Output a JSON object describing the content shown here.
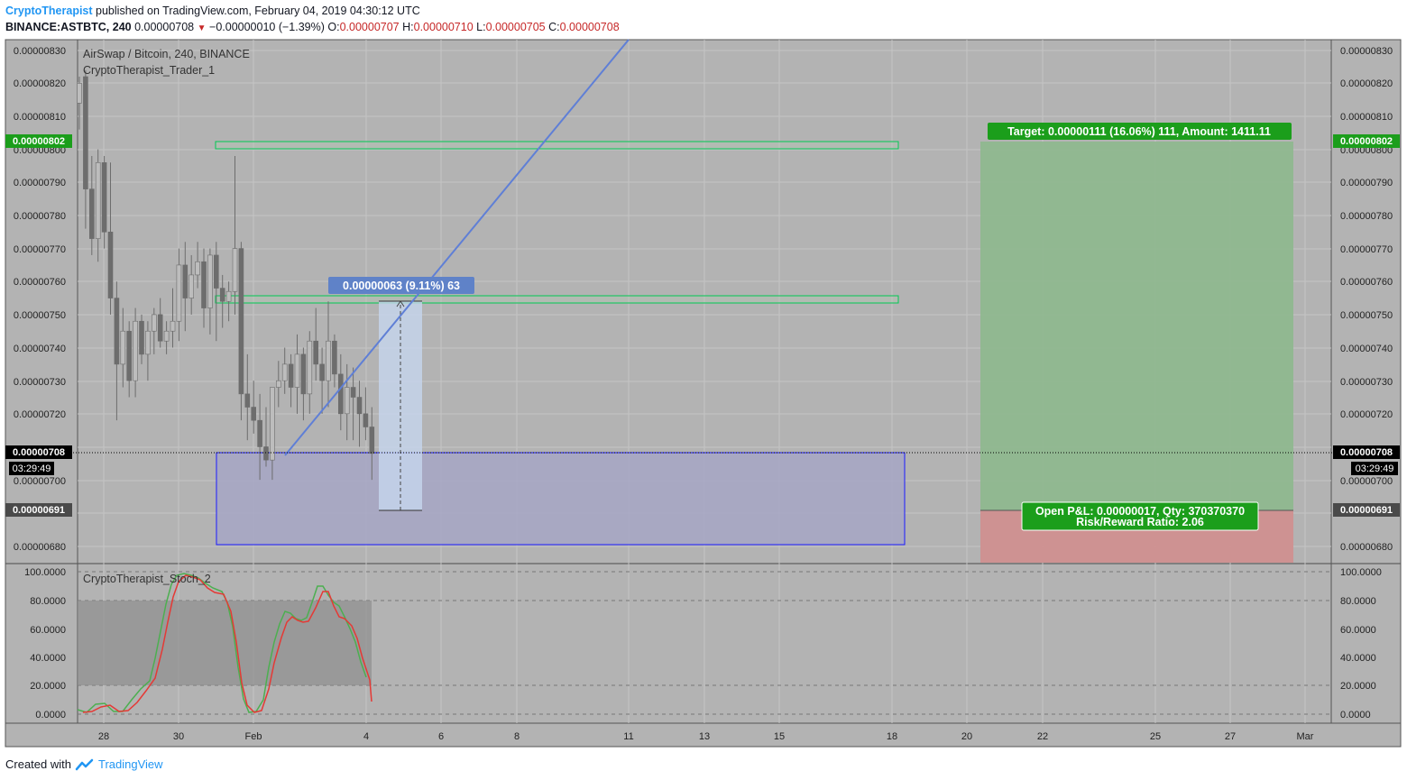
{
  "header": {
    "author": "CryptoTherapist",
    "published": "published on TradingView.com, February 04, 2019 04:30:12 UTC",
    "symbol": "BINANCE:ASTBTC, 240",
    "last": "0.00000708",
    "change": "−0.00000010 (−1.39%)",
    "o_label": "O:",
    "o": "0.00000707",
    "h_label": "H:",
    "h": "0.00000710",
    "l_label": "L:",
    "l": "0.00000705",
    "c_label": "C:",
    "c": "0.00000708"
  },
  "chart": {
    "legend_title": "AirSwap / Bitcoin, 240, BINANCE",
    "legend_indicator": "CryptoTherapist_Trader_1",
    "stoch_label": "CryptoTherapist_Stoch_2",
    "price_ticks": [
      "0.00000830",
      "0.00000820",
      "0.00000810",
      "0.00000800",
      "0.00000790",
      "0.00000780",
      "0.00000770",
      "0.00000760",
      "0.00000750",
      "0.00000740",
      "0.00000730",
      "0.00000720",
      "0.00000700",
      "0.00000680"
    ],
    "stoch_ticks": [
      "100.0000",
      "80.0000",
      "60.0000",
      "40.0000",
      "20.0000",
      "0.0000"
    ],
    "x_ticks": [
      "28",
      "30",
      "Feb",
      "4",
      "6",
      "8",
      "11",
      "13",
      "15",
      "18",
      "20",
      "22",
      "25",
      "27",
      "Mar"
    ],
    "tag_target_price": "0.00000802",
    "tag_current_price": "0.00000708",
    "tag_countdown": "03:29:49",
    "tag_stop_price": "0.00000691",
    "measure_label": "0.00000063 (9.11%) 63",
    "target_label": "Target: 0.00000111 (16.06%) 111, Amount: 1411.11",
    "pnl_line1": "Open P&L: 0.00000017, Qty: 370370370",
    "pnl_line2": "Risk/Reward Ratio: 2.06",
    "colors": {
      "plot_bg": "#b3b3b3",
      "up_candle": "#bdbdbd",
      "down_candle": "#6d6d6d",
      "zone_green": "#00c853",
      "zone_blue": "#1a1aff",
      "trendline": "#5f7fd6",
      "tag_green": "#1b9e1b",
      "profit": "#8fb88f",
      "loss": "#d09090",
      "stoch_k": "#4caf50",
      "stoch_d": "#e53935"
    }
  },
  "footer": {
    "created_with": "Created with",
    "brand": "TradingView"
  }
}
